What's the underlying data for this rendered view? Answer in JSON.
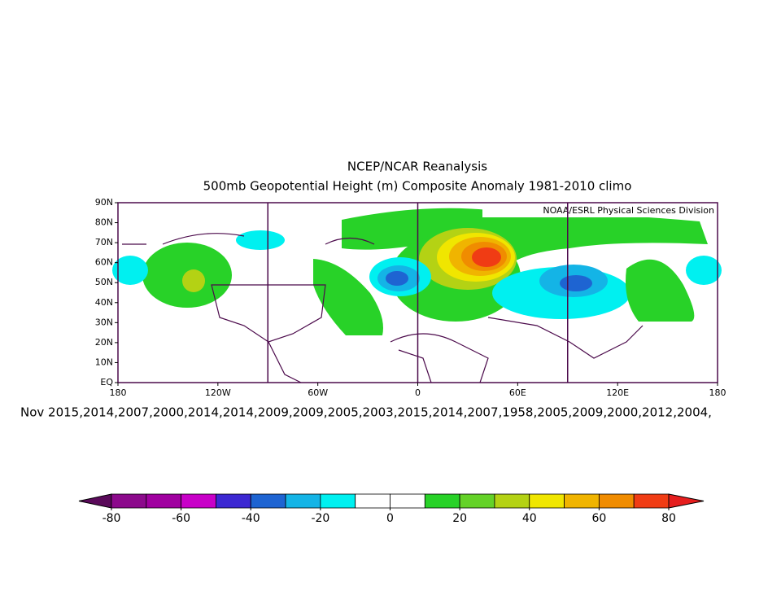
{
  "map": {
    "title": "NCEP/NCAR Reanalysis",
    "subtitle": "500mb Geopotential Height (m) Composite Anomaly 1981-2010 climo",
    "credit": "NOAA/ESRL Physical Sciences Division",
    "caption": "Nov 2015,2014,2007,2000,2014,2014,2009,2009,2005,2003,2015,2014,2007,1958,2005,2009,2000,2012,2004,",
    "xlim": [
      -180,
      180
    ],
    "ylim": [
      0,
      90
    ],
    "xticks": [
      {
        "value": -180,
        "label": "180"
      },
      {
        "value": -120,
        "label": "120W"
      },
      {
        "value": -60,
        "label": "60W"
      },
      0,
      {
        "value": 60,
        "label": "60E"
      },
      {
        "value": 120,
        "label": "120E"
      },
      {
        "value": 180,
        "label": "180"
      }
    ],
    "yticks": [
      {
        "value": 0,
        "label": "EQ"
      },
      {
        "value": 10,
        "label": "10N"
      },
      {
        "value": 20,
        "label": "20N"
      },
      {
        "value": 30,
        "label": "30N"
      },
      {
        "value": 40,
        "label": "40N"
      },
      {
        "value": 50,
        "label": "50N"
      },
      {
        "value": 60,
        "label": "60N"
      },
      {
        "value": 70,
        "label": "70N"
      },
      {
        "value": 80,
        "label": "80N"
      },
      {
        "value": 90,
        "label": "90N"
      }
    ],
    "xgrid": [
      -90,
      0,
      90
    ],
    "colorbar": {
      "levels": [
        -80,
        -70,
        -60,
        -50,
        -40,
        -30,
        -20,
        -10,
        0,
        10,
        20,
        30,
        40,
        50,
        60,
        70,
        80
      ],
      "colors": [
        "#5a0a5a",
        "#8c0a8c",
        "#a000a0",
        "#c800c8",
        "#3c28d2",
        "#1e64d2",
        "#14b4e6",
        "#00f0f0",
        "#ffffff",
        "#ffffff",
        "#28d228",
        "#64d228",
        "#b4d214",
        "#f0e600",
        "#f0b400",
        "#f08c00",
        "#f03c14",
        "#e61e1e"
      ],
      "ticks": [
        -80,
        -60,
        -40,
        -20,
        0,
        20,
        40,
        60,
        80
      ]
    }
  }
}
